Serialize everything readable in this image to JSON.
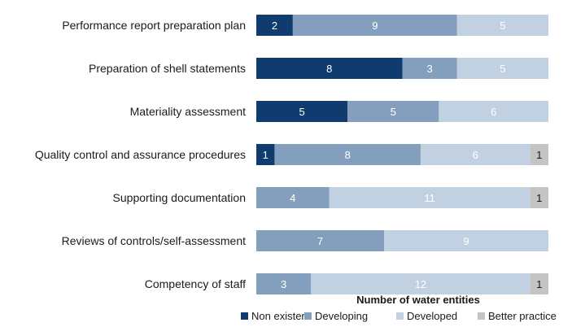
{
  "chart_data": {
    "type": "bar",
    "orientation": "horizontal",
    "stacked": true,
    "categories": [
      "Performance report preparation plan",
      "Preparation of shell statements",
      "Materiality assessment",
      "Quality control and assurance procedures",
      "Supporting documentation",
      "Reviews of controls/self-assessment",
      "Competency of staff"
    ],
    "series": [
      {
        "name": "Non existent",
        "color": "#0f3b6e",
        "label_color": "#ffffff",
        "values": [
          2,
          8,
          5,
          1,
          0,
          0,
          0
        ]
      },
      {
        "name": "Developing",
        "color": "#849fbd",
        "label_color": "#ffffff",
        "values": [
          9,
          3,
          5,
          8,
          4,
          7,
          3
        ]
      },
      {
        "name": "Developed",
        "color": "#c2d1e1",
        "label_color": "#ffffff",
        "values": [
          5,
          5,
          6,
          6,
          11,
          9,
          12
        ]
      },
      {
        "name": "Better practice",
        "color": "#c4c4c4",
        "label_color": "#1a1a1a",
        "values": [
          0,
          0,
          0,
          1,
          1,
          0,
          1
        ]
      }
    ],
    "xlabel": "Number of water entities",
    "ylabel": "",
    "xlim": [
      0,
      16
    ],
    "grid": false,
    "legend": "bottom-right"
  }
}
